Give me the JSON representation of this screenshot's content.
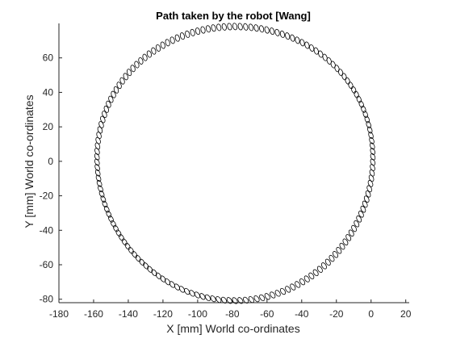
{
  "chart_data": {
    "type": "scatter",
    "title": "Path taken by the robot [Wang]",
    "xlabel": "X [mm] World co-ordinates",
    "ylabel": "Y [mm] World co-ordinates",
    "xlim": [
      -180,
      22
    ],
    "ylim": [
      -82,
      80
    ],
    "xticks": [
      -180,
      -160,
      -140,
      -120,
      -100,
      -80,
      -60,
      -40,
      -20,
      0,
      20
    ],
    "yticks": [
      -80,
      -60,
      -40,
      -20,
      0,
      20,
      40,
      60
    ],
    "grid": false,
    "marker": "o",
    "path_shape": "approximately circular loop",
    "center": [
      -78.5,
      -0.5
    ],
    "radius_x": 79.5,
    "radius_y": 79.5,
    "sample_points": [
      {
        "x": -159,
        "y": 0
      },
      {
        "x": -138,
        "y": 50
      },
      {
        "x": -100,
        "y": 77
      },
      {
        "x": -80,
        "y": 79
      },
      {
        "x": -40,
        "y": 69
      },
      {
        "x": -10,
        "y": 42
      },
      {
        "x": 0,
        "y": 0
      },
      {
        "x": -10,
        "y": -43
      },
      {
        "x": -40,
        "y": -70
      },
      {
        "x": -80,
        "y": -80
      },
      {
        "x": -120,
        "y": -69
      },
      {
        "x": -150,
        "y": -40
      }
    ],
    "colors": {
      "marker": "#000000",
      "axis": "#262626",
      "background": "#ffffff"
    }
  }
}
